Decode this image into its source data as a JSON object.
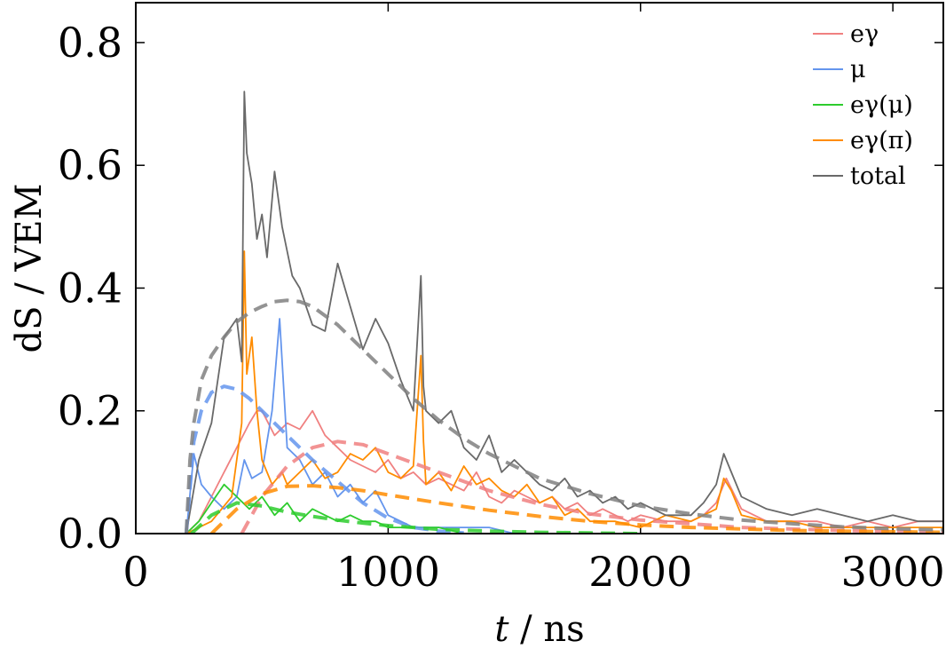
{
  "chart_data": {
    "type": "line",
    "title": "",
    "xlabel": {
      "symbol": "t",
      "unit": " / ns"
    },
    "ylabel": {
      "symbol": "dS",
      "unit": " / VEM"
    },
    "xlim": [
      0,
      3200
    ],
    "ylim": [
      0,
      0.865
    ],
    "xticks": [
      0,
      1000,
      2000,
      3000
    ],
    "xtick_labels": [
      "0",
      "1000",
      "2000",
      "3000"
    ],
    "yticks": [
      0,
      0.2,
      0.4,
      0.6,
      0.8
    ],
    "ytick_labels": [
      "0.0",
      "0.2",
      "0.4",
      "0.6",
      "0.8"
    ],
    "grid": false,
    "legend_position": "top-right",
    "series": [
      {
        "name": "eγ",
        "color": "#f08080",
        "kind": "trace",
        "x": [
          200,
          250,
          300,
          350,
          400,
          450,
          480,
          500,
          550,
          600,
          650,
          700,
          750,
          800,
          850,
          900,
          950,
          1000,
          1050,
          1100,
          1150,
          1200,
          1250,
          1300,
          1350,
          1400,
          1450,
          1500,
          1550,
          1600,
          1650,
          1700,
          1750,
          1800,
          1850,
          1900,
          1950,
          2000,
          2100,
          2200,
          2250,
          2300,
          2340,
          2400,
          2500,
          2600,
          2700,
          2800,
          2900,
          3000,
          3100,
          3200
        ],
        "y": [
          0,
          0.02,
          0.06,
          0.1,
          0.14,
          0.18,
          0.2,
          0.2,
          0.16,
          0.18,
          0.17,
          0.2,
          0.16,
          0.14,
          0.12,
          0.11,
          0.1,
          0.12,
          0.09,
          0.1,
          0.08,
          0.09,
          0.08,
          0.07,
          0.1,
          0.06,
          0.05,
          0.07,
          0.06,
          0.05,
          0.06,
          0.04,
          0.05,
          0.03,
          0.04,
          0.03,
          0.02,
          0.03,
          0.02,
          0.02,
          0.03,
          0.05,
          0.09,
          0.04,
          0.02,
          0.02,
          0.02,
          0.01,
          0.02,
          0.01,
          0.02,
          0.02
        ]
      },
      {
        "name": "μ",
        "color": "#6495ed",
        "kind": "trace",
        "x": [
          200,
          230,
          260,
          300,
          350,
          400,
          430,
          460,
          500,
          540,
          570,
          600,
          650,
          700,
          750,
          800,
          850,
          900,
          950,
          1000,
          1050,
          1100,
          1200,
          1300,
          1400,
          1500,
          1600,
          1700,
          1800,
          2000,
          2200,
          2400,
          2600,
          2800,
          3000,
          3200
        ],
        "y": [
          0,
          0.13,
          0.08,
          0.06,
          0.04,
          0.06,
          0.12,
          0.09,
          0.1,
          0.2,
          0.35,
          0.14,
          0.12,
          0.08,
          0.1,
          0.06,
          0.08,
          0.05,
          0.07,
          0.03,
          0.02,
          0.01,
          0.01,
          0.01,
          0.01,
          0,
          0,
          0,
          0,
          0,
          0,
          0,
          0,
          0,
          0,
          0
        ]
      },
      {
        "name": "eγ(μ)",
        "color": "#2ecc2e",
        "kind": "trace",
        "x": [
          200,
          250,
          300,
          350,
          400,
          450,
          500,
          550,
          600,
          650,
          700,
          750,
          800,
          850,
          900,
          950,
          1000,
          1100,
          1200,
          1300,
          1400,
          1600,
          1800,
          2000,
          2200,
          2400,
          2600,
          2800,
          3000,
          3200
        ],
        "y": [
          0,
          0.02,
          0.05,
          0.08,
          0.06,
          0.04,
          0.06,
          0.03,
          0.05,
          0.02,
          0.04,
          0.03,
          0.02,
          0.03,
          0.02,
          0.02,
          0.01,
          0.01,
          0.01,
          0,
          0,
          0,
          0,
          0,
          0,
          0,
          0,
          0,
          0,
          0
        ]
      },
      {
        "name": "eγ(π)",
        "color": "#ff8c00",
        "kind": "trace",
        "x": [
          200,
          300,
          380,
          420,
          430,
          440,
          460,
          480,
          500,
          540,
          580,
          600,
          650,
          700,
          750,
          800,
          850,
          900,
          950,
          1000,
          1050,
          1100,
          1130,
          1140,
          1150,
          1200,
          1250,
          1300,
          1350,
          1400,
          1450,
          1500,
          1550,
          1600,
          1650,
          1700,
          1750,
          1800,
          1900,
          2000,
          2100,
          2200,
          2300,
          2330,
          2360,
          2400,
          2500,
          2600,
          2700,
          2800,
          2900,
          3000,
          3100,
          3200
        ],
        "y": [
          0,
          0.02,
          0.06,
          0.18,
          0.46,
          0.26,
          0.32,
          0.2,
          0.12,
          0.08,
          0.1,
          0.08,
          0.1,
          0.12,
          0.09,
          0.1,
          0.13,
          0.12,
          0.14,
          0.1,
          0.09,
          0.11,
          0.29,
          0.15,
          0.08,
          0.1,
          0.07,
          0.11,
          0.08,
          0.09,
          0.07,
          0.06,
          0.08,
          0.05,
          0.06,
          0.03,
          0.04,
          0.02,
          0.02,
          0.01,
          0.03,
          0.02,
          0.04,
          0.09,
          0.07,
          0.03,
          0.02,
          0.02,
          0.01,
          0.01,
          0.01,
          0.01,
          0.01,
          0.01
        ]
      },
      {
        "name": "total",
        "color": "#696969",
        "kind": "trace",
        "x": [
          200,
          250,
          300,
          350,
          400,
          420,
          430,
          440,
          460,
          480,
          500,
          520,
          550,
          580,
          600,
          620,
          650,
          700,
          750,
          800,
          850,
          900,
          950,
          1000,
          1050,
          1100,
          1130,
          1140,
          1150,
          1200,
          1250,
          1300,
          1350,
          1400,
          1450,
          1500,
          1550,
          1600,
          1650,
          1700,
          1750,
          1800,
          1850,
          1900,
          1950,
          2000,
          2100,
          2200,
          2250,
          2300,
          2330,
          2360,
          2400,
          2500,
          2600,
          2700,
          2800,
          2900,
          3000,
          3100,
          3200
        ],
        "y": [
          0,
          0.12,
          0.18,
          0.32,
          0.35,
          0.28,
          0.72,
          0.62,
          0.57,
          0.48,
          0.52,
          0.45,
          0.59,
          0.5,
          0.46,
          0.42,
          0.4,
          0.34,
          0.33,
          0.44,
          0.37,
          0.3,
          0.35,
          0.31,
          0.25,
          0.2,
          0.42,
          0.24,
          0.2,
          0.18,
          0.2,
          0.14,
          0.12,
          0.16,
          0.1,
          0.12,
          0.1,
          0.08,
          0.07,
          0.09,
          0.06,
          0.07,
          0.05,
          0.06,
          0.04,
          0.05,
          0.03,
          0.03,
          0.05,
          0.08,
          0.13,
          0.1,
          0.06,
          0.04,
          0.03,
          0.04,
          0.03,
          0.02,
          0.03,
          0.02,
          0.02
        ]
      },
      {
        "name": "",
        "color": "#f08080",
        "kind": "fit",
        "x": [
          420,
          500,
          600,
          700,
          800,
          900,
          1000,
          1100,
          1200,
          1400,
          1600,
          1800,
          2000,
          2400,
          2800,
          3200
        ],
        "y": [
          0,
          0.06,
          0.11,
          0.14,
          0.15,
          0.145,
          0.13,
          0.115,
          0.1,
          0.07,
          0.048,
          0.032,
          0.022,
          0.01,
          0.005,
          0.002
        ]
      },
      {
        "name": "",
        "color": "#6495ed",
        "kind": "fit",
        "x": [
          200,
          230,
          260,
          300,
          350,
          400,
          450,
          500,
          550,
          600,
          700,
          800,
          900,
          1000,
          1100,
          1200,
          1300
        ],
        "y": [
          0,
          0.15,
          0.2,
          0.23,
          0.24,
          0.235,
          0.22,
          0.2,
          0.18,
          0.16,
          0.12,
          0.085,
          0.05,
          0.025,
          0.01,
          0.004,
          0.001
        ]
      },
      {
        "name": "",
        "color": "#2ecc2e",
        "kind": "fit",
        "x": [
          220,
          300,
          400,
          500,
          600,
          700,
          800,
          900,
          1000,
          1200,
          1400,
          1600,
          1800,
          2000
        ],
        "y": [
          0,
          0.03,
          0.05,
          0.045,
          0.035,
          0.028,
          0.022,
          0.017,
          0.013,
          0.007,
          0.004,
          0.002,
          0.001,
          0
        ]
      },
      {
        "name": "",
        "color": "#ff8c00",
        "kind": "fit",
        "x": [
          300,
          400,
          500,
          600,
          700,
          800,
          900,
          1000,
          1200,
          1400,
          1600,
          1800,
          2000,
          2200,
          2600,
          3200
        ],
        "y": [
          0,
          0.04,
          0.065,
          0.077,
          0.078,
          0.075,
          0.07,
          0.063,
          0.05,
          0.038,
          0.028,
          0.02,
          0.014,
          0.01,
          0.005,
          0.002
        ]
      },
      {
        "name": "",
        "color": "#808080",
        "kind": "fit",
        "x": [
          200,
          215,
          230,
          260,
          300,
          350,
          400,
          450,
          500,
          550,
          600,
          650,
          700,
          800,
          900,
          1000,
          1100,
          1200,
          1300,
          1400,
          1600,
          1800,
          2000,
          2200,
          2400,
          2600,
          2800,
          3000,
          3200
        ],
        "y": [
          0,
          0.12,
          0.18,
          0.25,
          0.29,
          0.32,
          0.345,
          0.36,
          0.37,
          0.378,
          0.38,
          0.378,
          0.37,
          0.34,
          0.3,
          0.26,
          0.22,
          0.185,
          0.155,
          0.13,
          0.09,
          0.065,
          0.045,
          0.032,
          0.022,
          0.016,
          0.011,
          0.008,
          0.006
        ]
      }
    ]
  }
}
